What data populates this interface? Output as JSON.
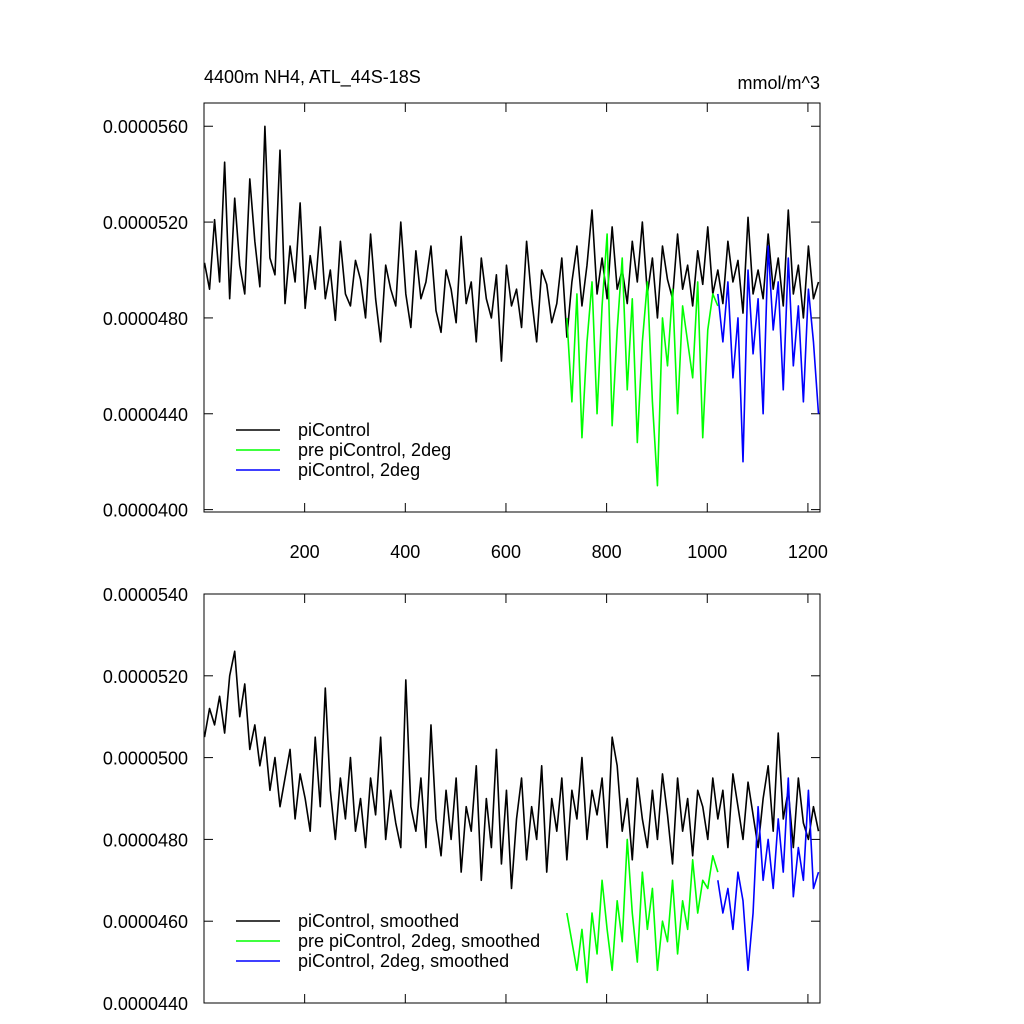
{
  "chart_data": [
    {
      "type": "line",
      "title": "4400m NH4, ATL_44S-18S",
      "units_label": "mmol/m^3",
      "xlim": [
        0,
        1224
      ],
      "xticks": [
        200,
        400,
        600,
        800,
        1000,
        1200
      ],
      "ylim": [
        3.99e-05,
        5.697e-05
      ],
      "yticks": [
        {
          "value": 4e-05,
          "label": "0.0000400"
        },
        {
          "value": 4.4e-05,
          "label": "0.0000440"
        },
        {
          "value": 4.8e-05,
          "label": "0.0000480"
        },
        {
          "value": 5.2e-05,
          "label": "0.0000520"
        },
        {
          "value": 5.6e-05,
          "label": "0.0000560"
        }
      ],
      "legend": "lower left",
      "series": [
        {
          "name": "piControl",
          "color": "#000000",
          "x": [
            1,
            11,
            21,
            31,
            41,
            51,
            61,
            71,
            81,
            91,
            101,
            111,
            121,
            131,
            141,
            151,
            161,
            171,
            181,
            191,
            201,
            211,
            221,
            231,
            241,
            251,
            261,
            271,
            281,
            291,
            301,
            311,
            321,
            331,
            341,
            351,
            361,
            371,
            381,
            391,
            401,
            411,
            421,
            431,
            441,
            451,
            461,
            471,
            481,
            491,
            501,
            511,
            521,
            531,
            541,
            551,
            561,
            571,
            581,
            591,
            601,
            611,
            621,
            631,
            641,
            651,
            661,
            671,
            681,
            691,
            701,
            711,
            721,
            731,
            741,
            751,
            761,
            771,
            781,
            791,
            801,
            811,
            821,
            831,
            841,
            851,
            861,
            871,
            881,
            891,
            901,
            911,
            921,
            931,
            941,
            951,
            961,
            971,
            981,
            991,
            1001,
            1011,
            1021,
            1031,
            1041,
            1051,
            1061,
            1071,
            1081,
            1091,
            1101,
            1111,
            1121,
            1131,
            1141,
            1151,
            1161,
            1171,
            1181,
            1191,
            1201,
            1211,
            1221
          ],
          "values": [
            5.03e-05,
            4.92e-05,
            5.21e-05,
            4.95e-05,
            5.45e-05,
            4.88e-05,
            5.3e-05,
            5.02e-05,
            4.9e-05,
            5.38e-05,
            5.12e-05,
            4.93e-05,
            5.6e-05,
            5.05e-05,
            4.98e-05,
            5.5e-05,
            4.86e-05,
            5.1e-05,
            4.95e-05,
            5.28e-05,
            4.84e-05,
            5.06e-05,
            4.92e-05,
            5.18e-05,
            4.88e-05,
            5e-05,
            4.79e-05,
            5.12e-05,
            4.9e-05,
            4.85e-05,
            5.04e-05,
            4.96e-05,
            4.8e-05,
            5.15e-05,
            4.88e-05,
            4.7e-05,
            5.02e-05,
            4.92e-05,
            4.85e-05,
            5.2e-05,
            4.9e-05,
            4.76e-05,
            5.08e-05,
            4.88e-05,
            4.95e-05,
            5.1e-05,
            4.83e-05,
            4.74e-05,
            5e-05,
            4.92e-05,
            4.78e-05,
            5.14e-05,
            4.86e-05,
            4.95e-05,
            4.7e-05,
            5.05e-05,
            4.88e-05,
            4.8e-05,
            4.98e-05,
            4.62e-05,
            5.02e-05,
            4.85e-05,
            4.92e-05,
            4.76e-05,
            5.12e-05,
            4.88e-05,
            4.7e-05,
            5e-05,
            4.94e-05,
            4.78e-05,
            4.86e-05,
            5.05e-05,
            4.72e-05,
            4.95e-05,
            5.1e-05,
            4.85e-05,
            5.02e-05,
            5.25e-05,
            4.9e-05,
            5.05e-05,
            4.88e-05,
            5.18e-05,
            4.92e-05,
            5e-05,
            4.86e-05,
            5.12e-05,
            4.95e-05,
            5.2e-05,
            4.9e-05,
            5.05e-05,
            4.8e-05,
            5.1e-05,
            4.96e-05,
            4.88e-05,
            5.15e-05,
            4.92e-05,
            5.02e-05,
            4.85e-05,
            5.08e-05,
            4.94e-05,
            5.18e-05,
            4.9e-05,
            5e-05,
            4.86e-05,
            5.12e-05,
            4.95e-05,
            5.04e-05,
            4.82e-05,
            5.22e-05,
            4.9e-05,
            5e-05,
            4.88e-05,
            5.15e-05,
            4.92e-05,
            5.05e-05,
            4.85e-05,
            5.25e-05,
            4.9e-05,
            5.02e-05,
            4.8e-05,
            5.1e-05,
            4.88e-05,
            4.95e-05
          ]
        },
        {
          "name": "pre piControl, 2deg",
          "color": "#00ff00",
          "x": [
            721,
            731,
            741,
            751,
            761,
            771,
            781,
            791,
            801,
            811,
            821,
            831,
            841,
            851,
            861,
            871,
            881,
            891,
            901,
            911,
            921,
            931,
            941,
            951,
            961,
            971,
            981,
            991,
            1001,
            1011,
            1021
          ],
          "values": [
            4.8e-05,
            4.45e-05,
            4.9e-05,
            4.3e-05,
            4.7e-05,
            4.95e-05,
            4.4e-05,
            4.85e-05,
            5.15e-05,
            4.35e-05,
            4.75e-05,
            5.05e-05,
            4.5e-05,
            4.88e-05,
            4.28e-05,
            4.7e-05,
            4.95e-05,
            4.45e-05,
            4.1e-05,
            4.8e-05,
            4.6e-05,
            4.92e-05,
            4.4e-05,
            4.85e-05,
            4.7e-05,
            4.55e-05,
            4.95e-05,
            4.3e-05,
            4.75e-05,
            4.9e-05,
            4.85e-05
          ]
        },
        {
          "name": "piControl, 2deg",
          "color": "#0000ff",
          "x": [
            1021,
            1031,
            1041,
            1051,
            1061,
            1071,
            1081,
            1091,
            1101,
            1111,
            1121,
            1131,
            1141,
            1151,
            1161,
            1171,
            1181,
            1191,
            1201,
            1211,
            1221
          ],
          "values": [
            4.9e-05,
            4.7e-05,
            4.95e-05,
            4.55e-05,
            4.8e-05,
            4.2e-05,
            5e-05,
            4.65e-05,
            4.88e-05,
            4.4e-05,
            5.1e-05,
            4.75e-05,
            4.95e-05,
            4.5e-05,
            5.05e-05,
            4.6e-05,
            4.85e-05,
            4.45e-05,
            4.92e-05,
            4.7e-05,
            4.4e-05
          ]
        }
      ]
    },
    {
      "type": "line",
      "xlim": [
        0,
        1224
      ],
      "xticks": [
        200,
        400,
        600,
        800,
        1000,
        1200
      ],
      "ylim": [
        4.4e-05,
        5.4e-05
      ],
      "yticks": [
        {
          "value": 4.4e-05,
          "label": "0.0000440"
        },
        {
          "value": 4.6e-05,
          "label": "0.0000460"
        },
        {
          "value": 4.8e-05,
          "label": "0.0000480"
        },
        {
          "value": 5e-05,
          "label": "0.0000500"
        },
        {
          "value": 5.2e-05,
          "label": "0.0000520"
        },
        {
          "value": 5.4e-05,
          "label": "0.0000540"
        }
      ],
      "legend": "lower left",
      "series": [
        {
          "name": "piControl, smoothed",
          "color": "#000000",
          "x": [
            1,
            11,
            21,
            31,
            41,
            51,
            61,
            71,
            81,
            91,
            101,
            111,
            121,
            131,
            141,
            151,
            161,
            171,
            181,
            191,
            201,
            211,
            221,
            231,
            241,
            251,
            261,
            271,
            281,
            291,
            301,
            311,
            321,
            331,
            341,
            351,
            361,
            371,
            381,
            391,
            401,
            411,
            421,
            431,
            441,
            451,
            461,
            471,
            481,
            491,
            501,
            511,
            521,
            531,
            541,
            551,
            561,
            571,
            581,
            591,
            601,
            611,
            621,
            631,
            641,
            651,
            661,
            671,
            681,
            691,
            701,
            711,
            721,
            731,
            741,
            751,
            761,
            771,
            781,
            791,
            801,
            811,
            821,
            831,
            841,
            851,
            861,
            871,
            881,
            891,
            901,
            911,
            921,
            931,
            941,
            951,
            961,
            971,
            981,
            991,
            1001,
            1011,
            1021,
            1031,
            1041,
            1051,
            1061,
            1071,
            1081,
            1091,
            1101,
            1111,
            1121,
            1131,
            1141,
            1151,
            1161,
            1171,
            1181,
            1191,
            1201,
            1211,
            1221
          ],
          "values": [
            5.05e-05,
            5.12e-05,
            5.08e-05,
            5.15e-05,
            5.06e-05,
            5.2e-05,
            5.26e-05,
            5.1e-05,
            5.18e-05,
            5.02e-05,
            5.08e-05,
            4.98e-05,
            5.05e-05,
            4.92e-05,
            5e-05,
            4.88e-05,
            4.95e-05,
            5.02e-05,
            4.85e-05,
            4.96e-05,
            4.9e-05,
            4.82e-05,
            5.05e-05,
            4.88e-05,
            5.17e-05,
            4.92e-05,
            4.8e-05,
            4.95e-05,
            4.85e-05,
            5e-05,
            4.82e-05,
            4.9e-05,
            4.78e-05,
            4.95e-05,
            4.86e-05,
            5.05e-05,
            4.8e-05,
            4.92e-05,
            4.84e-05,
            4.78e-05,
            5.19e-05,
            4.88e-05,
            4.82e-05,
            4.95e-05,
            4.78e-05,
            5.08e-05,
            4.85e-05,
            4.76e-05,
            4.92e-05,
            4.8e-05,
            4.95e-05,
            4.72e-05,
            4.88e-05,
            4.82e-05,
            4.98e-05,
            4.7e-05,
            4.9e-05,
            4.78e-05,
            5.02e-05,
            4.74e-05,
            4.92e-05,
            4.68e-05,
            4.85e-05,
            4.95e-05,
            4.75e-05,
            4.88e-05,
            4.8e-05,
            4.98e-05,
            4.72e-05,
            4.9e-05,
            4.82e-05,
            4.95e-05,
            4.75e-05,
            4.92e-05,
            4.85e-05,
            5e-05,
            4.8e-05,
            4.92e-05,
            4.86e-05,
            4.95e-05,
            4.78e-05,
            5.05e-05,
            4.98e-05,
            4.82e-05,
            4.9e-05,
            4.75e-05,
            4.95e-05,
            4.85e-05,
            4.78e-05,
            4.92e-05,
            4.8e-05,
            4.96e-05,
            4.86e-05,
            4.74e-05,
            4.95e-05,
            4.82e-05,
            4.9e-05,
            4.76e-05,
            4.92e-05,
            4.88e-05,
            4.8e-05,
            4.95e-05,
            4.85e-05,
            4.92e-05,
            4.78e-05,
            4.96e-05,
            4.88e-05,
            4.8e-05,
            4.94e-05,
            4.86e-05,
            4.78e-05,
            4.9e-05,
            4.98e-05,
            4.82e-05,
            5.06e-05,
            4.85e-05,
            4.92e-05,
            4.78e-05,
            4.95e-05,
            4.84e-05,
            4.8e-05,
            4.88e-05,
            4.82e-05
          ]
        },
        {
          "name": "pre piControl, 2deg, smoothed",
          "color": "#00ff00",
          "x": [
            721,
            731,
            741,
            751,
            761,
            771,
            781,
            791,
            801,
            811,
            821,
            831,
            841,
            851,
            861,
            871,
            881,
            891,
            901,
            911,
            921,
            931,
            941,
            951,
            961,
            971,
            981,
            991,
            1001,
            1011,
            1021
          ],
          "values": [
            4.62e-05,
            4.55e-05,
            4.48e-05,
            4.58e-05,
            4.45e-05,
            4.62e-05,
            4.52e-05,
            4.7e-05,
            4.58e-05,
            4.48e-05,
            4.65e-05,
            4.55e-05,
            4.8e-05,
            4.62e-05,
            4.5e-05,
            4.72e-05,
            4.58e-05,
            4.68e-05,
            4.48e-05,
            4.6e-05,
            4.55e-05,
            4.7e-05,
            4.52e-05,
            4.65e-05,
            4.58e-05,
            4.75e-05,
            4.62e-05,
            4.7e-05,
            4.68e-05,
            4.76e-05,
            4.72e-05
          ]
        },
        {
          "name": "piControl, 2deg, smoothed",
          "color": "#0000ff",
          "x": [
            1021,
            1031,
            1041,
            1051,
            1061,
            1071,
            1081,
            1091,
            1101,
            1111,
            1121,
            1131,
            1141,
            1151,
            1161,
            1171,
            1181,
            1191,
            1201,
            1211,
            1221
          ],
          "values": [
            4.7e-05,
            4.62e-05,
            4.68e-05,
            4.58e-05,
            4.72e-05,
            4.65e-05,
            4.48e-05,
            4.62e-05,
            4.88e-05,
            4.7e-05,
            4.8e-05,
            4.68e-05,
            4.85e-05,
            4.72e-05,
            4.95e-05,
            4.66e-05,
            4.78e-05,
            4.7e-05,
            4.92e-05,
            4.68e-05,
            4.72e-05
          ]
        }
      ]
    }
  ]
}
